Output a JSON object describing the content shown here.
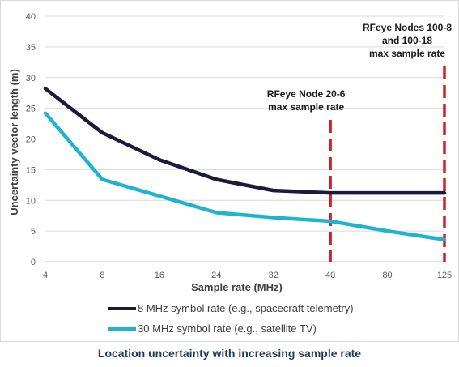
{
  "chart_data": {
    "type": "line",
    "title": "",
    "xlabel": "Sample rate (MHz)",
    "ylabel": "Uncertainty vector length (m)",
    "categories": [
      "4",
      "8",
      "16",
      "24",
      "32",
      "40",
      "80",
      "125"
    ],
    "ylim": [
      0,
      40
    ],
    "yticks": [
      0,
      5,
      10,
      15,
      20,
      25,
      30,
      35,
      40
    ],
    "grid": "horizontal",
    "legend": "bottom",
    "series": [
      {
        "name": "8 MHz symbol rate (e.g., spacecraft telemetry)",
        "color": "#1c1a3c",
        "values": [
          28.2,
          21.0,
          16.6,
          13.4,
          11.6,
          11.2,
          11.2,
          11.2
        ]
      },
      {
        "name": "30 MHz symbol rate (e.g., satellite TV)",
        "color": "#1eb4cf",
        "values": [
          24.2,
          13.4,
          10.7,
          8.0,
          7.2,
          6.6,
          5.0,
          3.6
        ]
      }
    ],
    "markers": [
      {
        "category": "40",
        "color": "#d0202a",
        "label_lines": [
          "RFeye Node 20-6",
          "max sample rate"
        ]
      },
      {
        "category": "125",
        "color": "#d0202a",
        "label_lines": [
          "RFeye Nodes 100-8",
          "and 100-18",
          "max sample rate"
        ]
      }
    ]
  },
  "caption": "Location uncertainty with increasing sample rate"
}
